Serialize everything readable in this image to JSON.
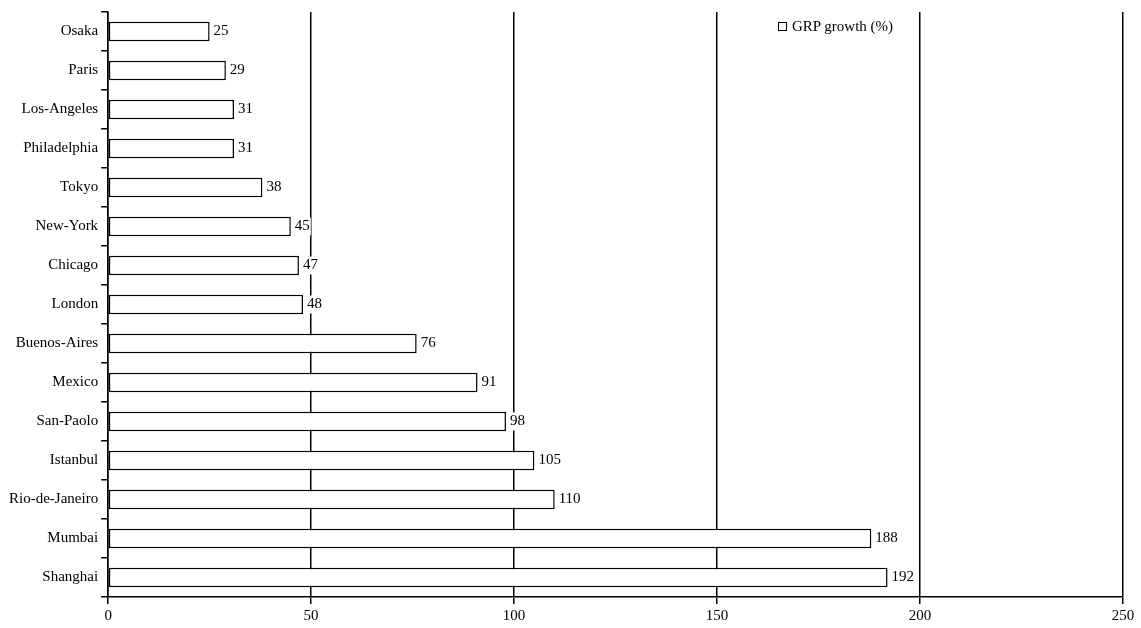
{
  "chart_data": {
    "type": "bar",
    "orientation": "horizontal",
    "categories": [
      "Osaka",
      "Paris",
      "Los-Angeles",
      "Philadelphia",
      "Tokyo",
      "New-York",
      "Chicago",
      "London",
      "Buenos-Aires",
      "Mexico",
      "San-Paolo",
      "Istanbul",
      "Rio-de-Janeiro",
      "Mumbai",
      "Shanghai"
    ],
    "series": [
      {
        "name": "GRP growth (%)",
        "color": "#ffffff",
        "values": [
          25,
          29,
          31,
          31,
          38,
          45,
          47,
          48,
          76,
          91,
          98,
          105,
          110,
          188,
          192
        ]
      }
    ],
    "xlim": [
      0,
      250
    ],
    "xticks": [
      0,
      50,
      100,
      150,
      200,
      250
    ],
    "grid": "x",
    "legend": "top right",
    "data_labels": true
  }
}
